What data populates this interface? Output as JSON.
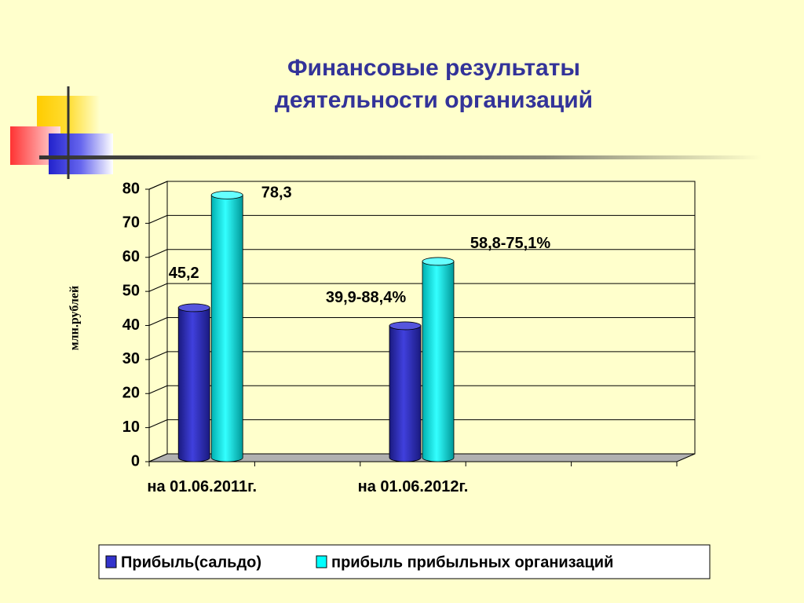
{
  "chart_data": {
    "type": "bar",
    "title": "Финансовые результаты деятельности организаций",
    "y_label": "млн.рублей",
    "categories": [
      "на 01.06.2011г.",
      null,
      "на 01.06.2012г.",
      null,
      null
    ],
    "series": [
      {
        "name": "Прибыль(сальдо)",
        "color": "#3333cc",
        "values": [
          45.2,
          null,
          39.9,
          null,
          null
        ],
        "value_labels": [
          "45,2",
          null,
          "39,9-88,4%",
          null,
          null
        ]
      },
      {
        "name": "прибыль прибыльных организаций",
        "color": "#00ffff",
        "values": [
          78.3,
          null,
          58.8,
          null,
          null
        ],
        "value_labels": [
          "78,3",
          null,
          "58,8-75,1%",
          null,
          null
        ]
      }
    ],
    "ylim": [
      0,
      80
    ],
    "yticks": [
      0,
      10,
      20,
      30,
      40,
      50,
      60,
      70,
      80
    ],
    "grid": true
  }
}
